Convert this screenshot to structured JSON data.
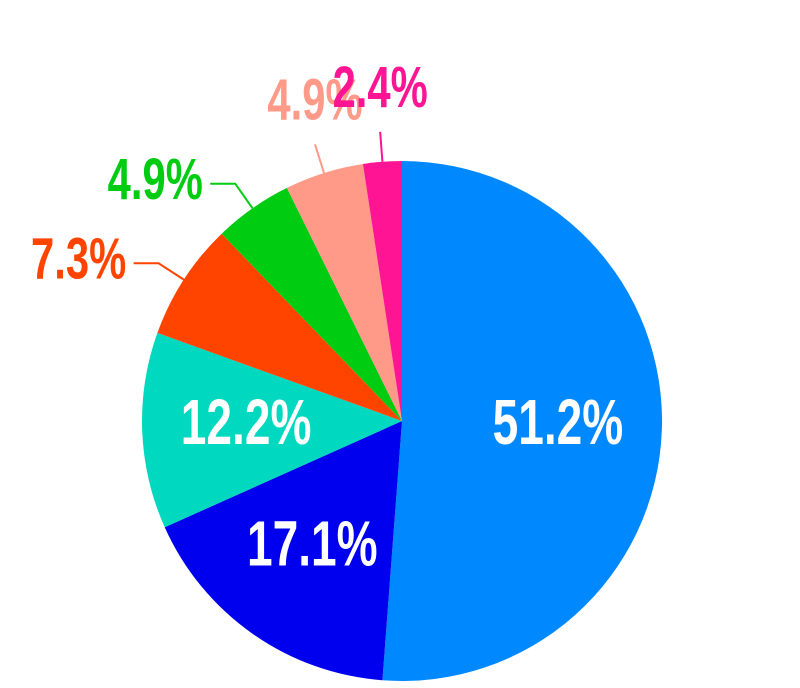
{
  "chart_data": {
    "type": "pie",
    "values": [
      51.2,
      17.1,
      12.2,
      7.3,
      4.9,
      4.9,
      2.4
    ],
    "value_labels": [
      "51.2%",
      "17.1%",
      "12.2%",
      "7.3%",
      "4.9%",
      "4.9%",
      "2.4%"
    ],
    "colors": [
      "#0088ff",
      "#0000ee",
      "#00d8c0",
      "#ff4400",
      "#00cc11",
      "#ff9988",
      "#ff1493"
    ]
  }
}
